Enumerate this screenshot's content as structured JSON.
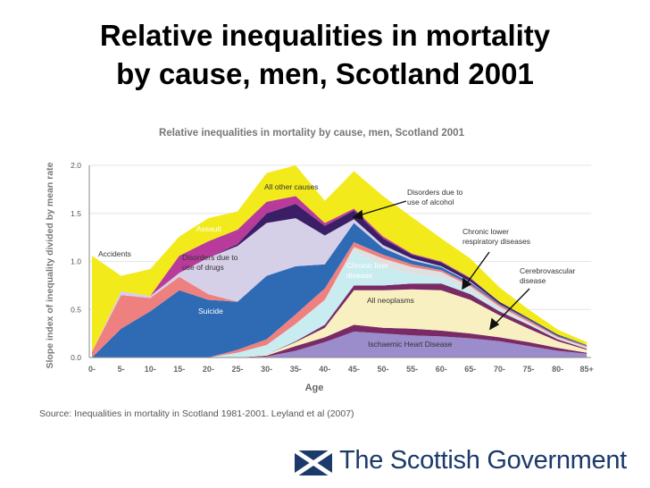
{
  "slide": {
    "title_line1": "Relative inequalities in mortality",
    "title_line2": "by cause, men, Scotland 2001",
    "source": "Source: Inequalities in mortality in Scotland 1981-2001. Leyland et al (2007)",
    "logo_text": "The Scottish Government"
  },
  "colors": {
    "ihd": "#9b8ccb",
    "ihd_top": "#7a2b66",
    "neoplasm": "#f8f0c0",
    "liver": "#c8ecf0",
    "alcohol": "#3a1f66",
    "suicide": "#2f6bb5",
    "drugs": "#d6cfe8",
    "accidents": "#ef8080",
    "assault": "#b83a9a",
    "other": "#f2ea1a",
    "respiratory": "#e0e0e0",
    "brand": "#1b3a6b"
  },
  "chart_data": {
    "type": "area",
    "title": "Relative inequalities in mortality by cause, men, Scotland 2001",
    "xlabel": "Age",
    "ylabel": "Slope index of inequality divided by mean rate",
    "categories": [
      "0-",
      "5-",
      "10-",
      "15-",
      "20-",
      "25-",
      "30-",
      "35-",
      "40-",
      "45-",
      "50-",
      "55-",
      "60-",
      "65-",
      "70-",
      "75-",
      "80-",
      "85+"
    ],
    "ylim": [
      0,
      2.0
    ],
    "yticks": [
      "0.0",
      "0.5",
      "1.0",
      "1.5",
      "2.0"
    ],
    "series": [
      {
        "name": "Ischaemic Heart Disease",
        "color": "#9b8ccb",
        "values": [
          0,
          0,
          0,
          0,
          0,
          0,
          0.01,
          0.07,
          0.16,
          0.27,
          0.25,
          0.23,
          0.22,
          0.2,
          0.17,
          0.12,
          0.07,
          0.04
        ]
      },
      {
        "name": "",
        "color": "#7a2b66",
        "values": [
          0,
          0,
          0,
          0,
          0,
          0,
          0.01,
          0.05,
          0.05,
          0.07,
          0.06,
          0.07,
          0.06,
          0.05,
          0.04,
          0.04,
          0.03,
          0.01
        ]
      },
      {
        "name": "All neoplasms",
        "color": "#f8f0c0",
        "values": [
          0,
          0,
          0,
          0,
          0,
          0,
          0.01,
          0.04,
          0.1,
          0.36,
          0.39,
          0.41,
          0.42,
          0.35,
          0.23,
          0.14,
          0.07,
          0.03
        ]
      },
      {
        "name": "",
        "color": "#7a2b66",
        "values": [
          0,
          0,
          0,
          0,
          0,
          0,
          0,
          0.01,
          0.03,
          0.05,
          0.05,
          0.06,
          0.07,
          0.06,
          0.04,
          0.04,
          0.02,
          0.01
        ]
      },
      {
        "name": "Chronic liver disease",
        "color": "#c8ecf0",
        "values": [
          0,
          0,
          0,
          0,
          0,
          0.05,
          0.1,
          0.18,
          0.25,
          0.36,
          0.2,
          0.1,
          0.06,
          0.04,
          0.02,
          0.01,
          0,
          0
        ]
      },
      {
        "name": "Chronic lower respiratory diseases",
        "color": "#e0e0e0",
        "values": [
          0,
          0,
          0,
          0,
          0,
          0,
          0,
          0,
          0.01,
          0.04,
          0.08,
          0.07,
          0.06,
          0.04,
          0.03,
          0.02,
          0.02,
          0.02
        ]
      },
      {
        "name": "",
        "color": "#ef8080",
        "values": [
          0,
          0,
          0,
          0,
          0,
          0.03,
          0.06,
          0.1,
          0.12,
          0.05,
          0.04,
          0.03,
          0.02,
          0.02,
          0.02,
          0.02,
          0.01,
          0.01
        ]
      },
      {
        "name": "Suicide",
        "color": "#2f6bb5",
        "values": [
          0,
          0.3,
          0.48,
          0.7,
          0.6,
          0.5,
          0.66,
          0.5,
          0.25,
          0.2,
          0.07,
          0.04,
          0.03,
          0.02,
          0.01,
          0.01,
          0.01,
          0.01
        ]
      },
      {
        "name": "Accidents",
        "color": "#ef8080",
        "values": [
          0.06,
          0.35,
          0.14,
          0.14,
          0.06,
          0,
          0,
          0,
          0,
          0,
          0,
          0,
          0,
          0,
          0,
          0,
          0,
          0
        ]
      },
      {
        "name": "Disorders due to use of drugs",
        "color": "#d6cfe8",
        "values": [
          0,
          0.04,
          0.02,
          0.04,
          0.38,
          0.58,
          0.55,
          0.5,
          0.3,
          0.04,
          0.03,
          0.02,
          0.01,
          0.01,
          0,
          0,
          0,
          0
        ]
      },
      {
        "name": "Disorders due to use of alcohol",
        "color": "#3a1f66",
        "values": [
          0,
          0,
          0,
          0,
          0,
          0.02,
          0.1,
          0.15,
          0.1,
          0.09,
          0.07,
          0.04,
          0.04,
          0.03,
          0.02,
          0.01,
          0.01,
          0
        ]
      },
      {
        "name": "Assault",
        "color": "#b83a9a",
        "values": [
          0,
          0,
          0,
          0.18,
          0.17,
          0.15,
          0.12,
          0.08,
          0.03,
          0.02,
          0.02,
          0.01,
          0.01,
          0.01,
          0,
          0,
          0,
          0
        ]
      },
      {
        "name": "All other causes",
        "color": "#f2ea1a",
        "values": [
          1.0,
          0.16,
          0.28,
          0.2,
          0.24,
          0.19,
          0.3,
          0.32,
          0.23,
          0.39,
          0.42,
          0.38,
          0.24,
          0.2,
          0.15,
          0.09,
          0.05,
          0.03
        ]
      }
    ],
    "labels": {
      "all_other": "All other causes",
      "alcohol_1": "Disorders due to",
      "alcohol_2": "use of alcohol",
      "resp_1": "Chronic lower",
      "resp_2": "respiratory diseases",
      "cerebro_1": "Cerebrovascular",
      "cerebro_2": "disease",
      "accidents": "Accidents",
      "assault": "Assault",
      "drugs_1": "Disorders due to",
      "drugs_2": "use of drugs",
      "liver_1": "Chronic liver",
      "liver_2": "disease",
      "neoplasms": "All neoplasms",
      "suicide": "Suicide",
      "ihd": "Ischaemic Heart Disease"
    }
  }
}
